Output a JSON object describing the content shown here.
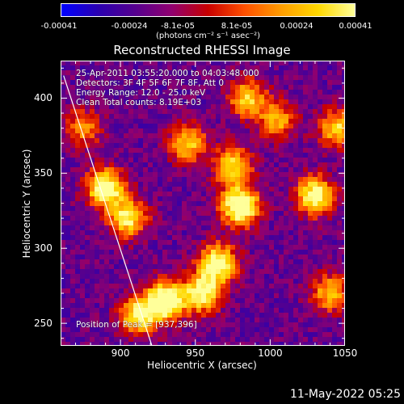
{
  "colorbar": {
    "tick_labels": [
      "-0.00041",
      "-0.00024",
      "-8.1e-05",
      "8.1e-05",
      "0.00024",
      "0.00041"
    ],
    "units_label": "(photons cm⁻² s⁻¹ asec⁻²)",
    "range": [
      -0.00041,
      0.00041
    ],
    "colormap": [
      "#0000ff",
      "#2a00b0",
      "#55008f",
      "#900070",
      "#c80000",
      "#ff5000",
      "#ff9d00",
      "#ffd800",
      "#ffff9a"
    ]
  },
  "title": "Reconstructed RHESSI Image",
  "annotations": {
    "time": "25-Apr-2011 03:55:20.000 to 04:03:48.000",
    "detectors": "Detectors: 3F 4F 5F 6F 7F 8F, Att 0",
    "energy": "Energy Range: 12.0 - 25.0 keV",
    "clean": "Clean    Total counts: 8.19E+03",
    "peak": "Position of Peak = [937,396]"
  },
  "footer_date": "11-May-2022 05:25",
  "chart_data": {
    "type": "heatmap",
    "title": "Reconstructed RHESSI Image",
    "xlabel": "Heliocentric X (arcsec)",
    "ylabel": "Heliocentric Y (arcsec)",
    "xlim": [
      860,
      1050
    ],
    "ylim": [
      235,
      425
    ],
    "x_ticks": [
      900,
      950,
      1000,
      1050
    ],
    "y_ticks": [
      250,
      300,
      350,
      400
    ],
    "value_range": [
      -0.00041,
      0.00041
    ],
    "limb_line": [
      [
        862,
        415
      ],
      [
        922,
        232
      ]
    ],
    "bright_sources": [
      {
        "x": 890,
        "y": 340,
        "level": 0.85
      },
      {
        "x": 905,
        "y": 320,
        "level": 0.7
      },
      {
        "x": 930,
        "y": 265,
        "level": 0.95
      },
      {
        "x": 912,
        "y": 255,
        "level": 0.7
      },
      {
        "x": 955,
        "y": 270,
        "level": 0.75
      },
      {
        "x": 980,
        "y": 328,
        "level": 0.95
      },
      {
        "x": 975,
        "y": 355,
        "level": 0.65
      },
      {
        "x": 965,
        "y": 290,
        "level": 0.8
      },
      {
        "x": 945,
        "y": 370,
        "level": 0.6
      },
      {
        "x": 1030,
        "y": 335,
        "level": 0.8
      },
      {
        "x": 1045,
        "y": 380,
        "level": 0.6
      },
      {
        "x": 985,
        "y": 400,
        "level": 0.6
      },
      {
        "x": 875,
        "y": 380,
        "level": 0.45
      },
      {
        "x": 1040,
        "y": 270,
        "level": 0.55
      },
      {
        "x": 1005,
        "y": 385,
        "level": 0.5
      }
    ]
  }
}
